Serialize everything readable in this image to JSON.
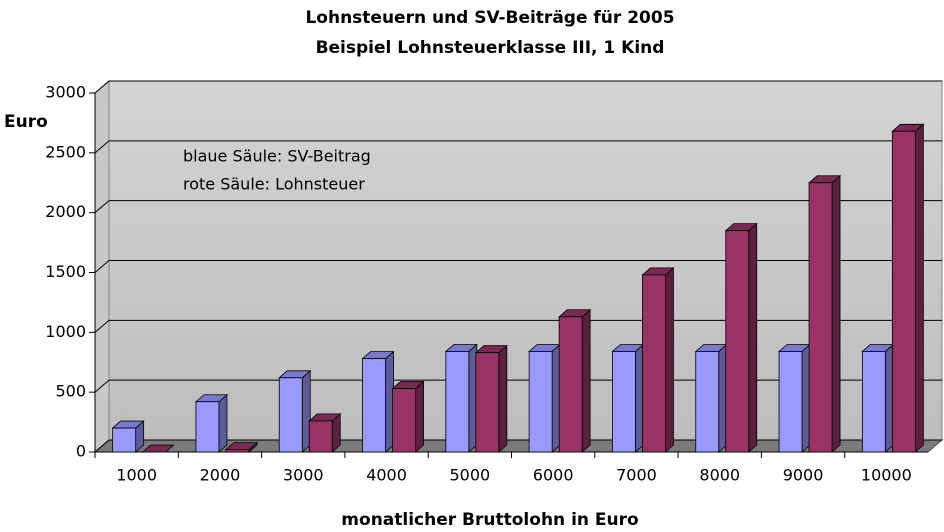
{
  "chart_data": {
    "type": "bar3d",
    "title": "Lohnsteuern und SV-Beiträge für 2005",
    "subtitle": "Beispiel Lohnsteuerklasse III, 1 Kind",
    "y_label": "Euro",
    "x_label": "monatlicher Bruttolohn in Euro",
    "annotations": [
      "blaue Säule: SV-Beitrag",
      "rote Säule: Lohnsteuer"
    ],
    "categories": [
      "1000",
      "2000",
      "3000",
      "4000",
      "5000",
      "6000",
      "7000",
      "8000",
      "9000",
      "10000"
    ],
    "series": [
      {
        "color": "#9999ff",
        "values": [
          200,
          420,
          620,
          780,
          840,
          840,
          840,
          840,
          840,
          840
        ]
      },
      {
        "color": "#993366",
        "values": [
          0,
          20,
          260,
          530,
          830,
          1130,
          1480,
          1850,
          2250,
          2680
        ]
      }
    ],
    "ylim": [
      0,
      3000
    ],
    "yticks": [
      0,
      500,
      1000,
      1500,
      2000,
      2500,
      3000
    ],
    "grid": true
  }
}
